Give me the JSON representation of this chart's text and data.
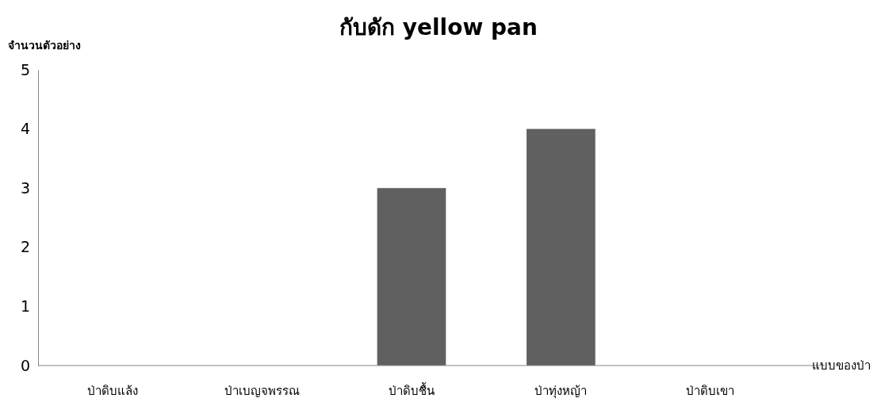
{
  "chart_data": {
    "type": "bar",
    "title": "กับดัก yellow pan",
    "ylabel": "จำนวนตัวอย่าง",
    "xlabel": "แบบของป่า",
    "categories": [
      "ป่าดิบแล้ง",
      "ป่าเบญจพรรณ",
      "ป่าดิบชื้น",
      "ป่าทุ่งหญ้า",
      "ป่าดิบเขา"
    ],
    "values": [
      0,
      0,
      3,
      4,
      0
    ],
    "color": "#606060",
    "ylim": [
      0,
      5
    ],
    "yticks": [
      0,
      1,
      2,
      3,
      4,
      5
    ],
    "grid": false,
    "legend": false
  }
}
